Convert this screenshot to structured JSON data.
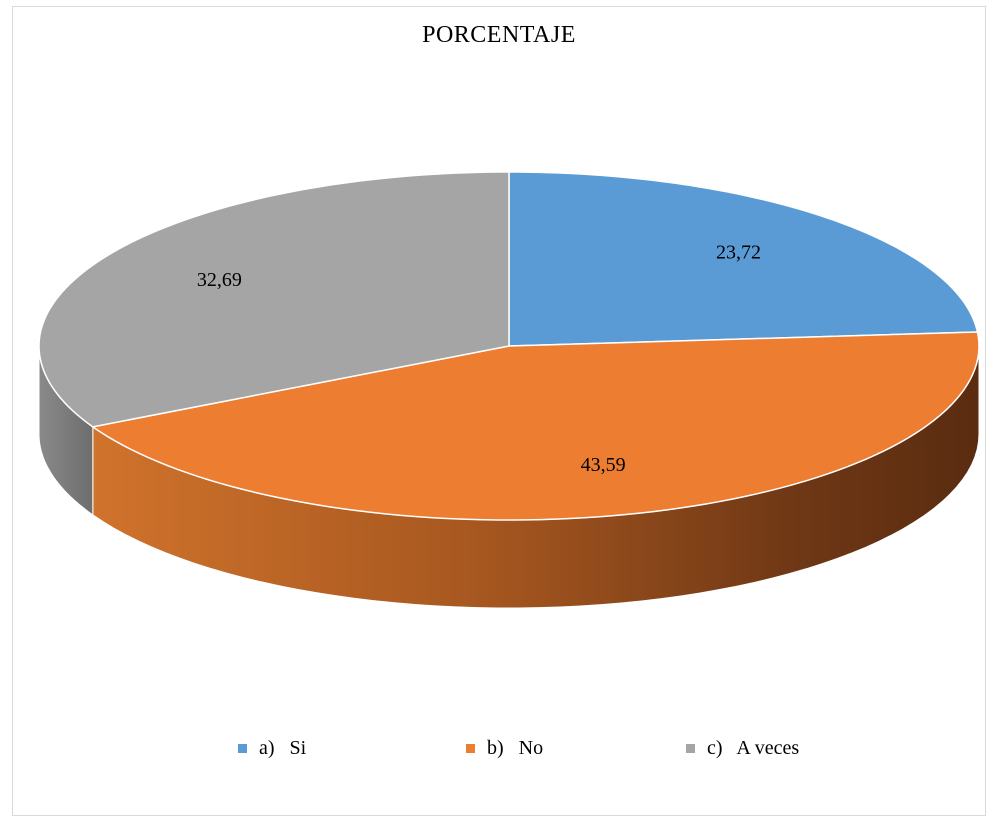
{
  "chart_data": {
    "type": "pie",
    "title": "PORCENTAJE",
    "categories": [
      "a)   Si",
      "b)   No",
      "c)   A veces"
    ],
    "values": [
      23.72,
      43.59,
      32.69
    ],
    "labels": [
      "23,72",
      "43,59",
      "32,69"
    ],
    "colors": [
      "#5b9bd5",
      "#ed7d31",
      "#a5a5a5"
    ],
    "legend": "bottom",
    "style": "3d"
  }
}
